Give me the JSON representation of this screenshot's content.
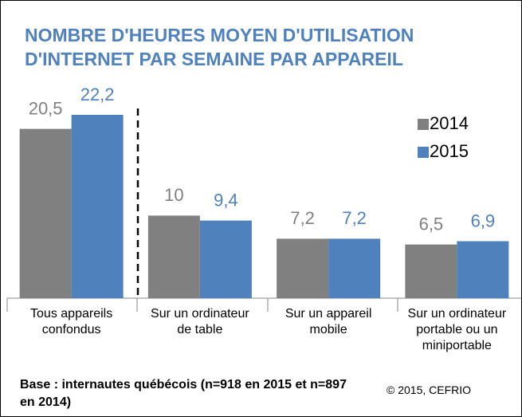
{
  "chart_data": {
    "type": "bar",
    "title": "NOMBRE D'HEURES MOYEN D'UTILISATION D'INTERNET PAR SEMAINE PAR APPAREIL",
    "categories": [
      "Tous appareils confondus",
      "Sur un ordinateur de table",
      "Sur un appareil mobile",
      "Sur un ordinateur portable ou un miniportable"
    ],
    "series": [
      {
        "name": "2014",
        "color": "#808080",
        "values": [
          20.5,
          10,
          7.2,
          6.5
        ],
        "value_labels": [
          "20,5",
          "10",
          "7,2",
          "6,5"
        ]
      },
      {
        "name": "2015",
        "color": "#4f81bd",
        "values": [
          22.2,
          9.4,
          7.2,
          6.9
        ],
        "value_labels": [
          "22,2",
          "9,4",
          "7,2",
          "6,9"
        ]
      }
    ],
    "legend": "upper right",
    "note": "Base : internautes québécois (n=918 en 2015 et n=897 en 2014)",
    "source": "© 2015, CEFRIO"
  }
}
